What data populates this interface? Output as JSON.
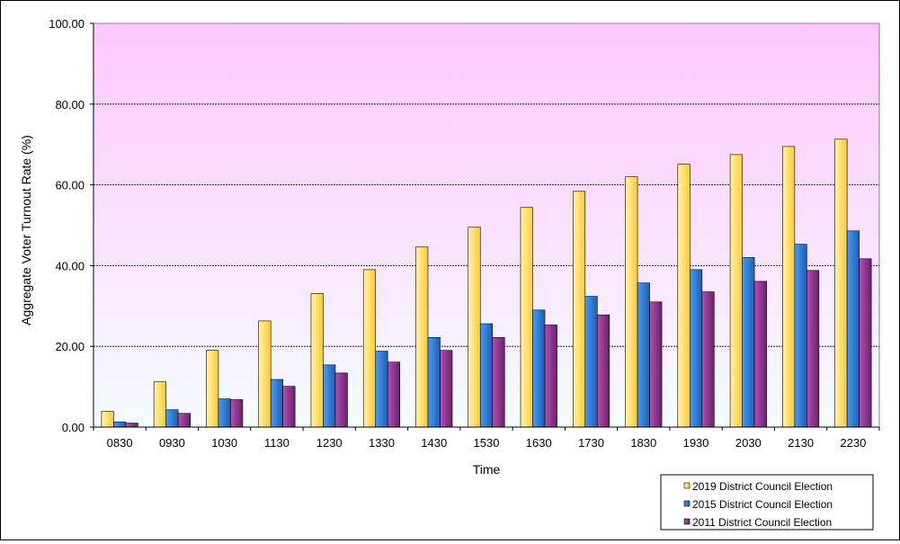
{
  "chart_data": {
    "type": "bar",
    "xlabel": "Time",
    "ylabel": "Aggregate Voter Turnout Rate (%)",
    "ylim": [
      0,
      100
    ],
    "yticks": [
      "0.00",
      "20.00",
      "40.00",
      "60.00",
      "80.00",
      "100.00"
    ],
    "grid": true,
    "legend_position": "bottom-right",
    "categories": [
      "0830",
      "0930",
      "1030",
      "1130",
      "1230",
      "1330",
      "1430",
      "1530",
      "1630",
      "1730",
      "1830",
      "1930",
      "2030",
      "2130",
      "2230"
    ],
    "series": [
      {
        "name": "2019 District Council Election",
        "color": "#FFD24D",
        "values": [
          3.9,
          11.2,
          19.0,
          26.3,
          33.1,
          39.0,
          44.6,
          49.5,
          54.4,
          58.4,
          62.0,
          65.1,
          67.5,
          69.5,
          71.3
        ]
      },
      {
        "name": "2015 District Council Election",
        "color": "#2F7FD9",
        "values": [
          1.3,
          4.3,
          7.0,
          11.8,
          15.4,
          18.8,
          22.2,
          25.6,
          29.0,
          32.4,
          35.7,
          39.0,
          42.0,
          45.3,
          48.6
        ]
      },
      {
        "name": "2011 District Council Election",
        "color": "#8E2D8E",
        "values": [
          1.0,
          3.4,
          6.8,
          10.1,
          13.4,
          16.1,
          19.0,
          22.2,
          25.3,
          27.8,
          31.0,
          33.5,
          36.1,
          38.8,
          41.7
        ]
      }
    ]
  }
}
